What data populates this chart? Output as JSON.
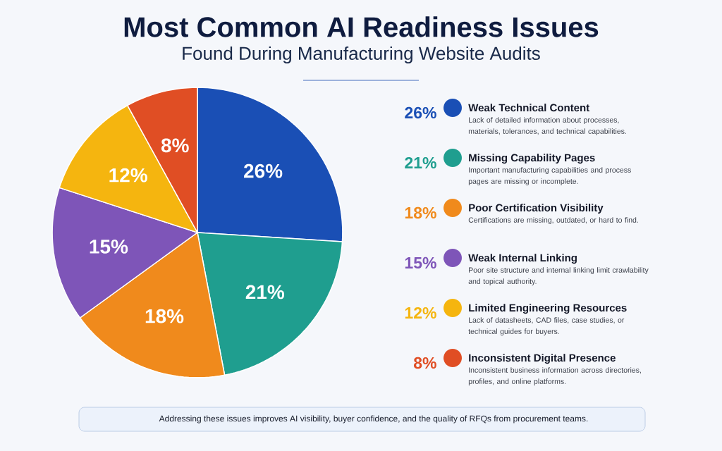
{
  "chart_data": {
    "type": "pie",
    "title": "Most Common AI Readiness Issues",
    "subtitle": "Found During Manufacturing Website Audits",
    "categories": [
      "Weak Technical Content",
      "Missing Capability Pages",
      "Poor Certification Visibility",
      "Weak Internal Linking",
      "Limited Engineering Resources",
      "Inconsistent Digital Presence"
    ],
    "values": [
      26,
      21,
      18,
      15,
      12,
      8
    ],
    "value_labels": [
      "26%",
      "21%",
      "18%",
      "15%",
      "12%",
      "8%"
    ],
    "colors": [
      "#1a4fb5",
      "#1f9e8f",
      "#f08a1c",
      "#7e55b8",
      "#f5b50f",
      "#e04e24"
    ],
    "legend": "right",
    "annotations": [
      "Lack of detailed information about processes, materials, tolerances, and technical capabilities.",
      "Important manufacturing capabilities and process pages are missing or incomplete.",
      "Certifications are missing, outdated, or hard to find.",
      "Poor site structure and internal linking limit crawlability and topical authority.",
      "Lack of datasheets, CAD files, case studies, or technical guides for buyers.",
      "Inconsistent business information across directories, profiles, and online platforms.",
      "Addressing these issues improves AI visibility, buyer confidence, and the quality of RFQs from procurement teams."
    ]
  }
}
